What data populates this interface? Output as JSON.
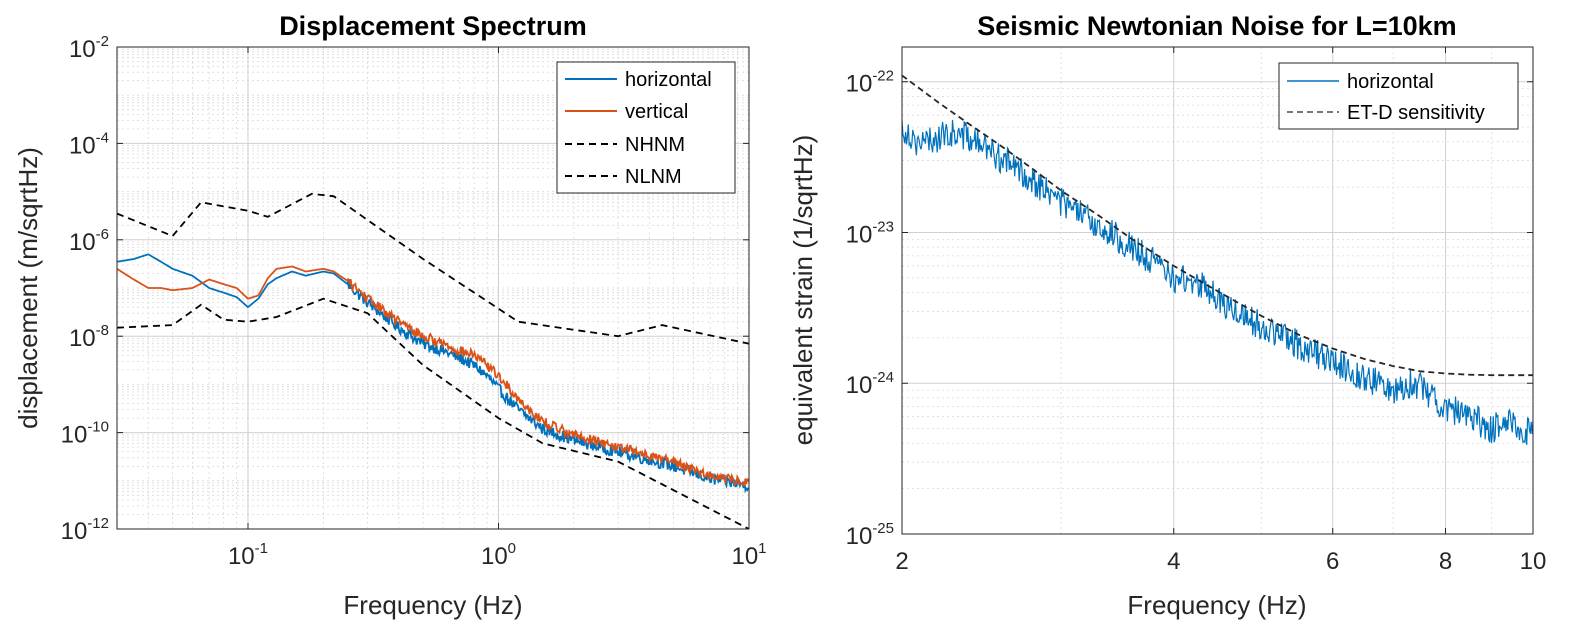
{
  "chart_data": [
    {
      "type": "line",
      "title": "Displacement Spectrum",
      "xlabel": "Frequency (Hz)",
      "ylabel": "displacement (m/sqrtHz)",
      "xscale": "log",
      "yscale": "log",
      "xlim": [
        0.03,
        10
      ],
      "ylim": [
        1e-12,
        0.01
      ],
      "grid": true,
      "legend_position": "top-right",
      "x_ticks": [
        {
          "value": 0.1,
          "base": "10",
          "exp": "-1"
        },
        {
          "value": 1,
          "base": "10",
          "exp": "0"
        },
        {
          "value": 10,
          "base": "10",
          "exp": "1"
        }
      ],
      "y_ticks": [
        {
          "value": 1e-12,
          "base": "10",
          "exp": "-12"
        },
        {
          "value": 1e-10,
          "base": "10",
          "exp": "-10"
        },
        {
          "value": 1e-08,
          "base": "10",
          "exp": "-8"
        },
        {
          "value": 1e-06,
          "base": "10",
          "exp": "-6"
        },
        {
          "value": 0.0001,
          "base": "10",
          "exp": "-4"
        },
        {
          "value": 0.01,
          "base": "10",
          "exp": "-2"
        }
      ],
      "series": [
        {
          "name": "horizontal",
          "color": "#0072BD",
          "style": "solid",
          "noise": 0.12,
          "noise_from": 0.25,
          "x": [
            0.03,
            0.035,
            0.04,
            0.045,
            0.05,
            0.06,
            0.07,
            0.08,
            0.09,
            0.1,
            0.11,
            0.12,
            0.13,
            0.15,
            0.17,
            0.2,
            0.22,
            0.25,
            0.3,
            0.4,
            0.5,
            0.6,
            0.7,
            0.8,
            0.9,
            1.0,
            1.2,
            1.5,
            2,
            3,
            5,
            7,
            10
          ],
          "y": [
            3.5e-07,
            4e-07,
            5e-07,
            3.5e-07,
            2.5e-07,
            1.8e-07,
            1e-07,
            8e-08,
            6.5e-08,
            4e-08,
            6e-08,
            1.2e-07,
            1.6e-07,
            2.2e-07,
            1.8e-07,
            2.2e-07,
            2e-07,
            1.2e-07,
            5e-08,
            1.5e-08,
            7e-09,
            5e-09,
            3.5e-09,
            2.5e-09,
            1.5e-09,
            8e-10,
            3e-10,
            1.2e-10,
            7e-11,
            4e-11,
            2e-11,
            1.1e-11,
            8e-12
          ]
        },
        {
          "name": "vertical",
          "color": "#D95319",
          "style": "solid",
          "noise": 0.1,
          "noise_from": 0.25,
          "x": [
            0.03,
            0.035,
            0.04,
            0.045,
            0.05,
            0.06,
            0.07,
            0.08,
            0.09,
            0.1,
            0.11,
            0.12,
            0.13,
            0.15,
            0.17,
            0.2,
            0.22,
            0.25,
            0.3,
            0.4,
            0.5,
            0.6,
            0.7,
            0.8,
            0.9,
            1.0,
            1.2,
            1.5,
            2,
            3,
            5,
            7,
            10
          ],
          "y": [
            2.5e-07,
            1.5e-07,
            1e-07,
            1e-07,
            9e-08,
            1e-07,
            1.5e-07,
            1.2e-07,
            1e-07,
            6e-08,
            7e-08,
            1.6e-07,
            2.5e-07,
            2.8e-07,
            2.2e-07,
            2.5e-07,
            2.2e-07,
            1.4e-07,
            6e-08,
            2e-08,
            1e-08,
            7e-09,
            5e-09,
            4e-09,
            2.5e-09,
            1.5e-09,
            5e-10,
            1.7e-10,
            9e-11,
            5e-11,
            2.5e-11,
            1.3e-11,
            9e-12
          ]
        },
        {
          "name": "NHNM",
          "color": "#000000",
          "style": "dashed",
          "x": [
            0.03,
            0.05,
            0.065,
            0.1,
            0.12,
            0.18,
            0.22,
            0.5,
            1.2,
            3,
            4.5,
            10
          ],
          "y": [
            3.5e-06,
            1.2e-06,
            6e-06,
            4e-06,
            3e-06,
            9e-06,
            8e-06,
            4e-07,
            2e-08,
            1e-08,
            1.7e-08,
            7e-09
          ]
        },
        {
          "name": "NLNM",
          "color": "#000000",
          "style": "dashed",
          "x": [
            0.03,
            0.05,
            0.065,
            0.08,
            0.1,
            0.13,
            0.2,
            0.3,
            0.5,
            1.0,
            1.5,
            3,
            10
          ],
          "y": [
            1.5e-08,
            1.7e-08,
            4.5e-08,
            2.2e-08,
            2e-08,
            2.5e-08,
            6e-08,
            3e-08,
            2.5e-09,
            2e-10,
            6e-11,
            2.5e-11,
            1e-12
          ]
        }
      ]
    },
    {
      "type": "line",
      "title": "Seismic Newtonian Noise for L=10km",
      "xlabel": "Frequency (Hz)",
      "ylabel": "equivalent strain (1/sqrtHz)",
      "xscale": "log",
      "yscale": "log",
      "xlim": [
        2,
        10
      ],
      "ylim": [
        1e-25,
        1.7e-22
      ],
      "grid": true,
      "legend_position": "top-right",
      "x_ticks": [
        {
          "value": 2,
          "label": "2"
        },
        {
          "value": 4,
          "label": "4"
        },
        {
          "value": 6,
          "label": "6"
        },
        {
          "value": 8,
          "label": "8"
        },
        {
          "value": 10,
          "label": "10"
        }
      ],
      "y_ticks": [
        {
          "value": 1e-25,
          "base": "10",
          "exp": "-25"
        },
        {
          "value": 1e-24,
          "base": "10",
          "exp": "-24"
        },
        {
          "value": 1e-23,
          "base": "10",
          "exp": "-23"
        },
        {
          "value": 1e-22,
          "base": "10",
          "exp": "-22"
        }
      ],
      "series": [
        {
          "name": "horizontal",
          "color": "#0072BD",
          "style": "solid",
          "noise": 0.1,
          "noise_from": 0,
          "x": [
            2.0,
            2.1,
            2.2,
            2.3,
            2.4,
            2.6,
            2.8,
            3.0,
            3.3,
            3.6,
            4.0,
            4.3,
            4.5,
            5.0,
            5.5,
            6.0,
            6.5,
            7.0,
            7.3,
            7.6,
            8.0,
            8.5,
            9.0,
            9.5,
            10.0
          ],
          "y": [
            5e-23,
            3.8e-23,
            4.3e-23,
            4.6e-23,
            4.1e-23,
            3e-23,
            2.2e-23,
            1.6e-23,
            1.1e-23,
            8e-24,
            5e-24,
            4.5e-24,
            3.5e-24,
            2.4e-24,
            1.8e-24,
            1.4e-24,
            1.1e-24,
            9e-25,
            1e-24,
            9e-25,
            7e-25,
            6e-25,
            5e-25,
            5.5e-25,
            4.5e-25
          ]
        },
        {
          "name": "ET-D sensitivity",
          "color": "#262626",
          "style": "dashed",
          "x": [
            2.0,
            2.2,
            2.4,
            2.6,
            2.8,
            3.0,
            3.3,
            3.6,
            4.0,
            4.5,
            5.0,
            5.5,
            6.0,
            6.5,
            7.0,
            7.5,
            8.0,
            8.5,
            9.0,
            9.5,
            10.0
          ],
          "y": [
            1.1e-22,
            7.2e-23,
            5e-23,
            3.6e-23,
            2.6e-23,
            1.9e-23,
            1.3e-23,
            9e-24,
            6e-24,
            4e-24,
            2.8e-24,
            2.1e-24,
            1.7e-24,
            1.45e-24,
            1.3e-24,
            1.2e-24,
            1.16e-24,
            1.14e-24,
            1.13e-24,
            1.13e-24,
            1.13e-24
          ]
        }
      ]
    }
  ]
}
